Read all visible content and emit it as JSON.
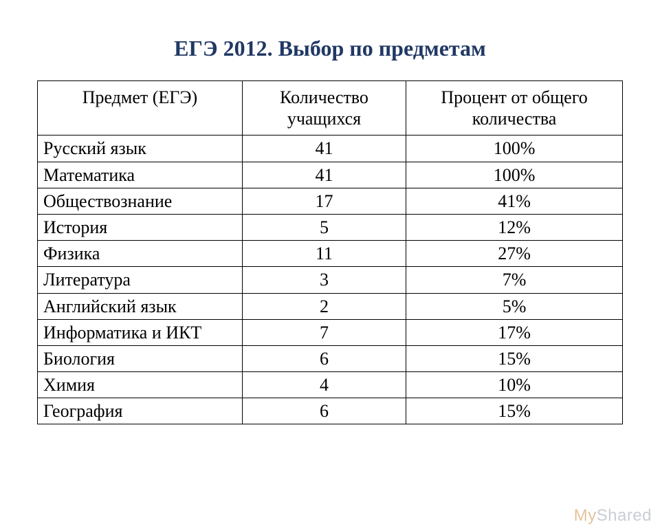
{
  "title": "ЕГЭ 2012. Выбор по предметам",
  "table": {
    "type": "table",
    "columns": [
      "Предмет  (ЕГЭ)",
      "Количество учащихся",
      "Процент от общего количества"
    ],
    "column_widths_pct": [
      35,
      28,
      37
    ],
    "header_align": "center",
    "header_valign": "top",
    "cell_font_size_pt": 20,
    "title_font_size_pt": 24,
    "title_color": "#203864",
    "border_color": "#000000",
    "text_color": "#000000",
    "background_color": "#ffffff",
    "rows": [
      {
        "subject": "Русский язык",
        "count": "41",
        "percent": "100%"
      },
      {
        "subject": "Математика",
        "count": "41",
        "percent": "100%"
      },
      {
        "subject": "Обществознание",
        "count": "17",
        "percent": "41%"
      },
      {
        "subject": "История",
        "count": "5",
        "percent": "12%"
      },
      {
        "subject": "Физика",
        "count": "11",
        "percent": "27%"
      },
      {
        "subject": "Литература",
        "count": "3",
        "percent": "7%"
      },
      {
        "subject": "Английский язык",
        "count": "2",
        "percent": "5%"
      },
      {
        "subject": "Информатика и ИКТ",
        "count": "7",
        "percent": "17%"
      },
      {
        "subject": "Биология",
        "count": "6",
        "percent": "15%"
      },
      {
        "subject": "Химия",
        "count": "4",
        "percent": "10%"
      },
      {
        "subject": "География",
        "count": "6",
        "percent": "15%"
      }
    ]
  },
  "watermark": {
    "prefix": "My",
    "suffix": "Shared"
  }
}
